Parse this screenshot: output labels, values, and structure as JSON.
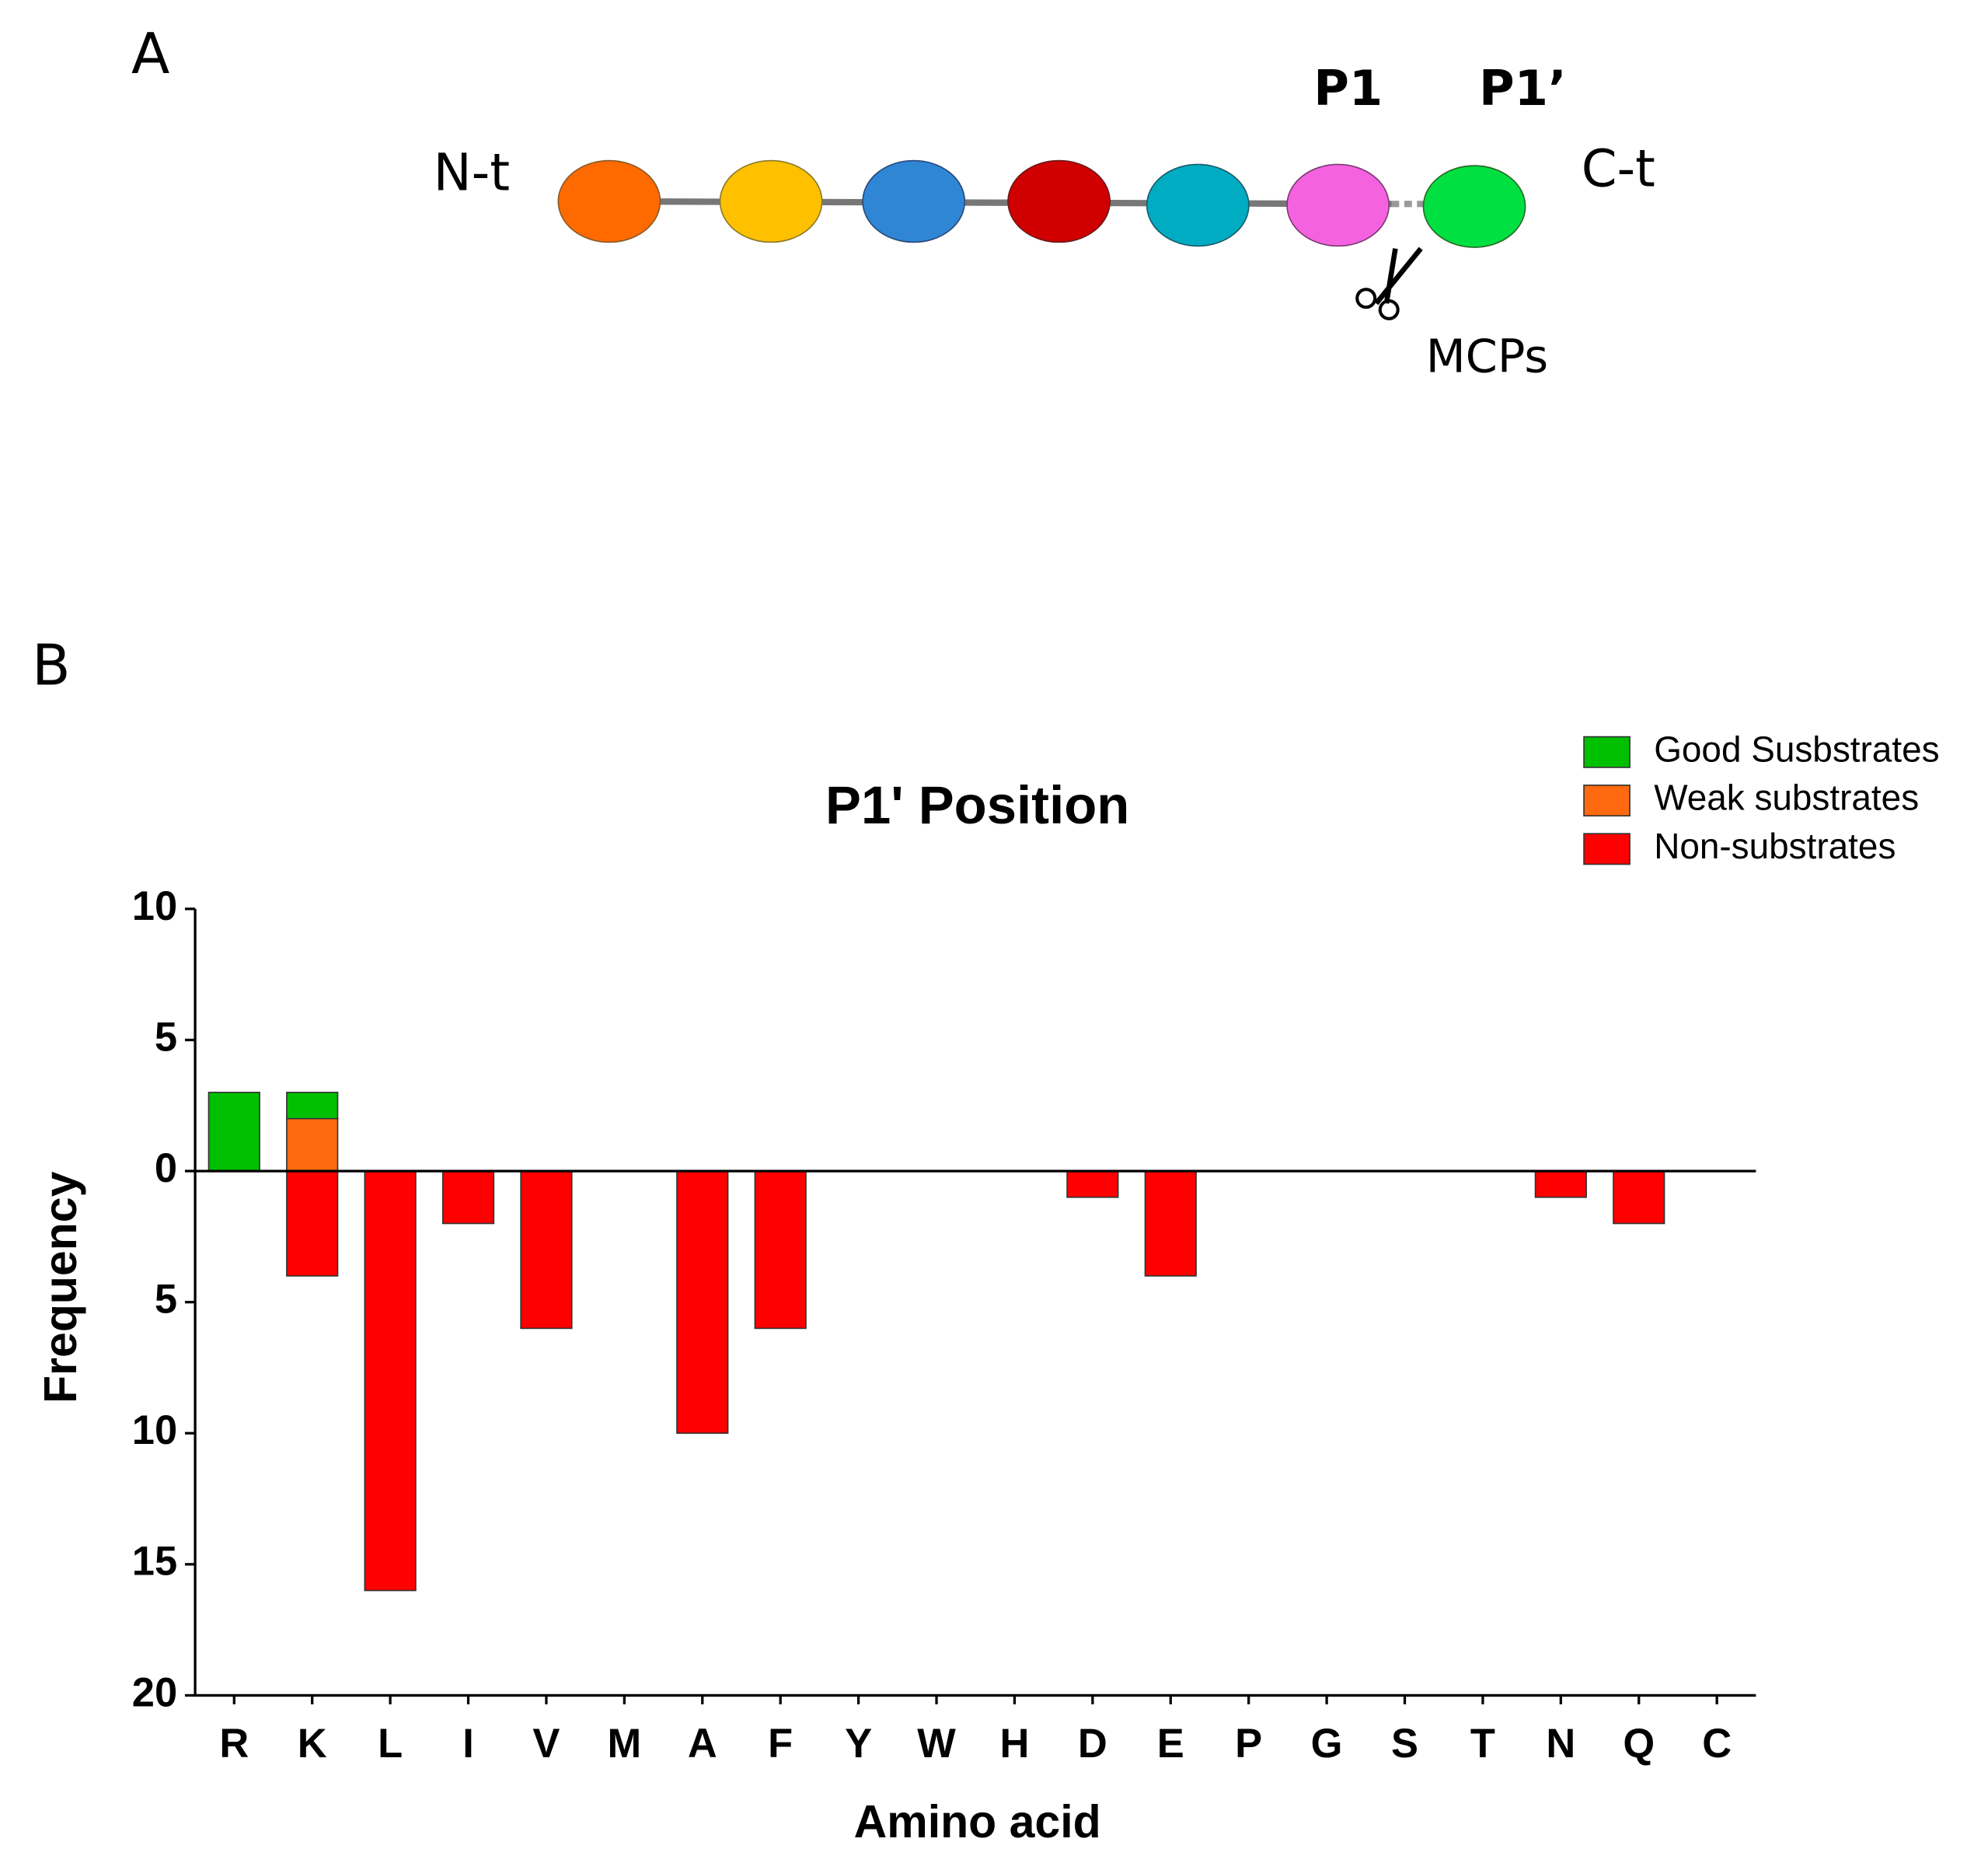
{
  "panel_labels": [
    "A",
    "B"
  ],
  "diagram": {
    "n_terminus": "N-t",
    "c_terminus": "C-t",
    "p1": "P1",
    "p1_prime": "P1’",
    "enzyme": "MCPs"
  },
  "chart_data": {
    "type": "bar",
    "title": "P1' Position",
    "x_label": "Amino acid",
    "y_label": "Frequency",
    "categories": [
      "R",
      "K",
      "L",
      "I",
      "V",
      "M",
      "A",
      "F",
      "Y",
      "W",
      "H",
      "D",
      "E",
      "P",
      "G",
      "S",
      "T",
      "N",
      "Q",
      "C"
    ],
    "series": [
      {
        "name": "Good Susbstrates",
        "color": "#00c000",
        "values": [
          3,
          1,
          0,
          0,
          0,
          0,
          0,
          0,
          0,
          0,
          0,
          0,
          0,
          0,
          0,
          0,
          0,
          0,
          0,
          0
        ]
      },
      {
        "name": "Weak substrates",
        "color": "#ff6a10",
        "values": [
          0,
          2,
          0,
          0,
          0,
          0,
          0,
          0,
          0,
          0,
          0,
          0,
          0,
          0,
          0,
          0,
          0,
          0,
          0,
          0
        ]
      },
      {
        "name": "Non-substrates",
        "color": "#ff0000",
        "values": [
          0,
          -4,
          -16,
          -2,
          -6,
          0,
          -10,
          -6,
          0,
          0,
          0,
          -1,
          -4,
          0,
          0,
          0,
          0,
          -1,
          -2,
          0
        ]
      }
    ],
    "ylim": [
      -20,
      10
    ],
    "yticks": [
      {
        "value": -20,
        "label": "20"
      },
      {
        "value": -15,
        "label": "15"
      },
      {
        "value": -10,
        "label": "10"
      },
      {
        "value": -5,
        "label": "5"
      },
      0,
      5,
      10
    ],
    "legend": "top-right",
    "stacked": true,
    "grid": false
  }
}
